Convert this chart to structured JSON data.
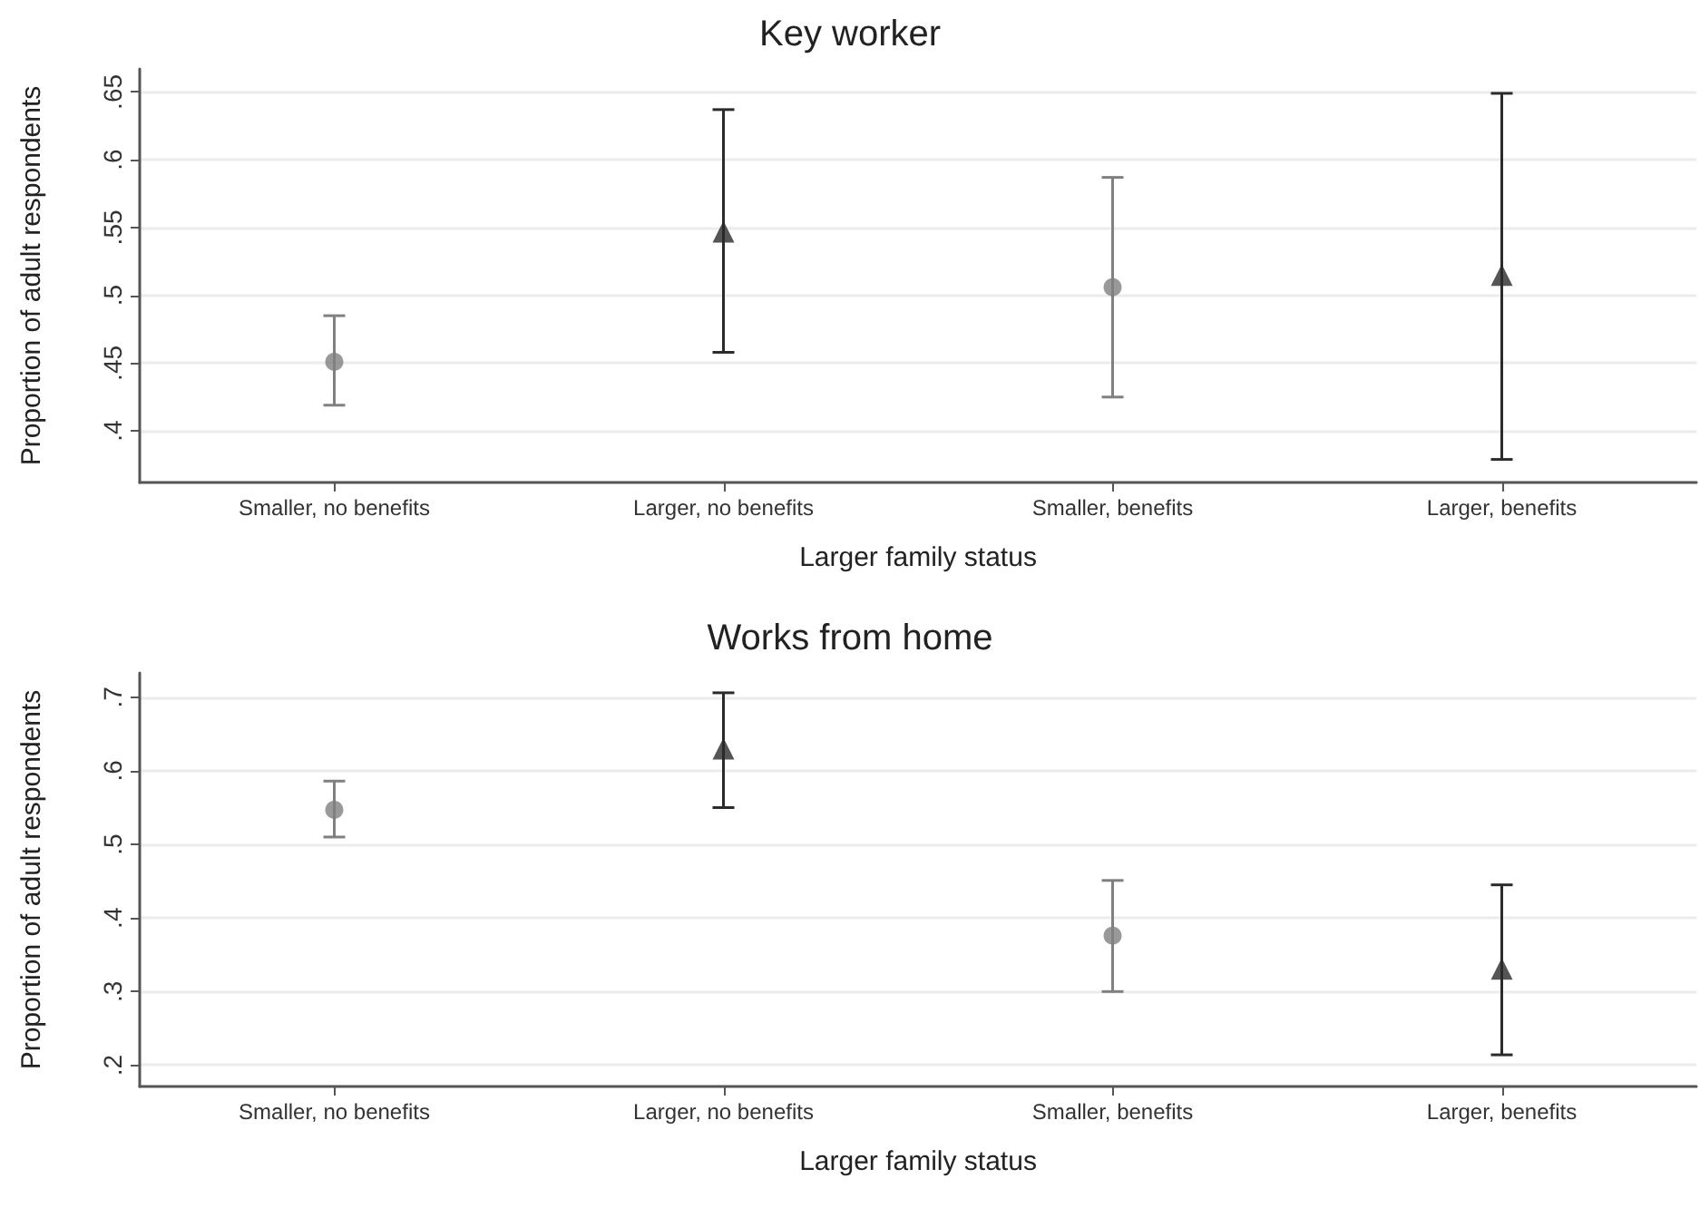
{
  "chart_data": [
    {
      "type": "scatter",
      "title": "Key worker",
      "xlabel": "Larger family status",
      "ylabel": "Proportion of adult respondents",
      "categories": [
        "Smaller, no benefits",
        "Larger, no benefits",
        "Smaller, benefits",
        "Larger, benefits"
      ],
      "series": [
        {
          "color": "#808080",
          "marker": "circle",
          "values": [
            0.451,
            null,
            0.506,
            null
          ],
          "errors": [
            [
              0.419,
              0.485
            ],
            null,
            [
              0.425,
              0.587
            ],
            null
          ]
        },
        {
          "color": "#2b2b2b",
          "marker": "triangle",
          "values": [
            null,
            0.547,
            null,
            0.515
          ],
          "errors": [
            null,
            [
              0.458,
              0.637
            ],
            null,
            [
              0.379,
              0.649
            ]
          ]
        }
      ],
      "ylim": [
        0.362,
        0.667
      ],
      "yticks": [
        {
          "value": 0.4,
          "label": ".4"
        },
        {
          "value": 0.45,
          "label": ".45"
        },
        {
          "value": 0.5,
          "label": ".5"
        },
        {
          "value": 0.55,
          "label": ".55"
        },
        {
          "value": 0.6,
          "label": ".6"
        },
        {
          "value": 0.65,
          "label": ".65"
        }
      ],
      "grid": "y"
    },
    {
      "type": "scatter",
      "title": "Works from home",
      "xlabel": "Larger family status",
      "ylabel": "Proportion of adult respondents",
      "categories": [
        "Smaller, no benefits",
        "Larger, no benefits",
        "Smaller, benefits",
        "Larger, benefits"
      ],
      "series": [
        {
          "color": "#808080",
          "marker": "circle",
          "values": [
            0.547,
            null,
            0.376,
            null
          ],
          "errors": [
            [
              0.51,
              0.586
            ],
            null,
            [
              0.3,
              0.451
            ],
            null
          ]
        },
        {
          "color": "#2b2b2b",
          "marker": "triangle",
          "values": [
            null,
            0.63,
            null,
            0.331
          ],
          "errors": [
            null,
            [
              0.55,
              0.706
            ],
            null,
            [
              0.214,
              0.445
            ]
          ]
        }
      ],
      "ylim": [
        0.171,
        0.733
      ],
      "yticks": [
        {
          "value": 0.2,
          "label": ".2"
        },
        {
          "value": 0.3,
          "label": ".3"
        },
        {
          "value": 0.4,
          "label": ".4"
        },
        {
          "value": 0.5,
          "label": ".5"
        },
        {
          "value": 0.6,
          "label": ".6"
        },
        {
          "value": 0.7,
          "label": ".7"
        }
      ],
      "grid": "y"
    }
  ]
}
